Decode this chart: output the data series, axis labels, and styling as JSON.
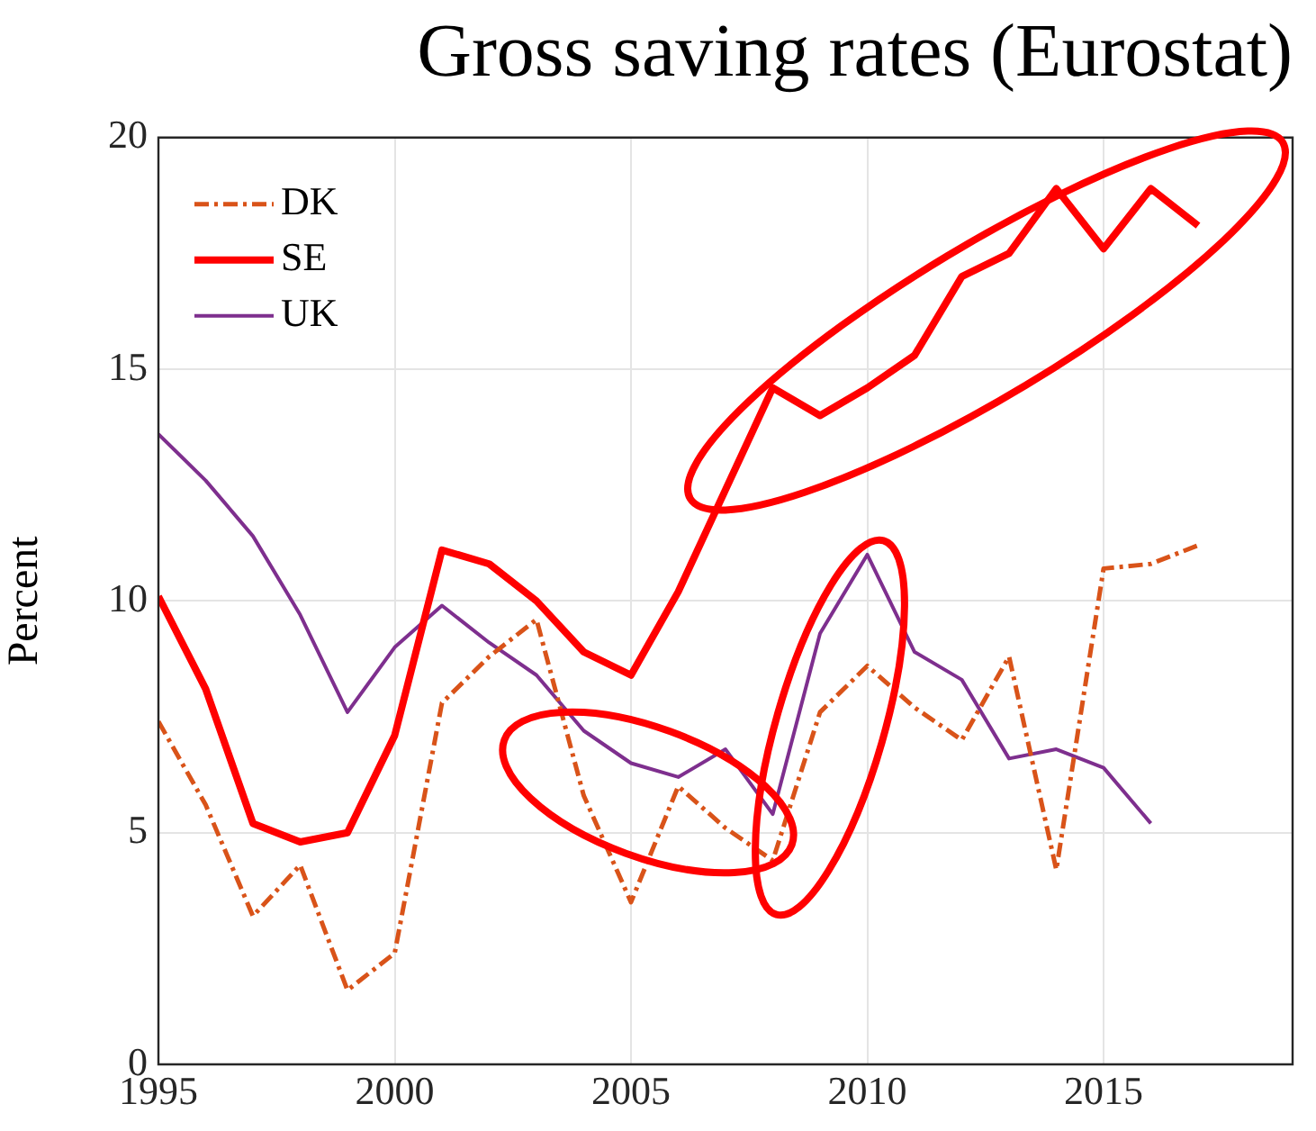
{
  "chart_data": {
    "type": "line",
    "title": "Gross saving rates (Eurostat)",
    "ylabel": "Percent",
    "x": [
      1995,
      1996,
      1997,
      1998,
      1999,
      2000,
      2001,
      2002,
      2003,
      2004,
      2005,
      2006,
      2007,
      2008,
      2009,
      2010,
      2011,
      2012,
      2013,
      2014,
      2015,
      2016,
      2017
    ],
    "series": [
      {
        "name": "DK",
        "color": "#d95319",
        "line_style": "dashed",
        "values": [
          7.4,
          5.6,
          3.2,
          4.3,
          1.6,
          2.4,
          7.8,
          8.8,
          9.6,
          5.8,
          3.5,
          6.0,
          5.1,
          4.4,
          7.6,
          8.6,
          7.7,
          7.0,
          8.8,
          4.2,
          10.7,
          10.8,
          11.2
        ]
      },
      {
        "name": "SE",
        "color": "#ff0000",
        "line_style": "solid",
        "values": [
          10.1,
          8.1,
          5.2,
          4.8,
          5.0,
          7.1,
          11.1,
          10.8,
          10.0,
          8.9,
          8.4,
          10.2,
          12.4,
          14.6,
          14.0,
          14.6,
          15.3,
          17.0,
          17.5,
          18.9,
          17.6,
          18.9,
          18.1
        ]
      },
      {
        "name": "UK",
        "color": "#7e2f8e",
        "line_style": "solid",
        "values": [
          13.6,
          12.6,
          11.4,
          9.7,
          7.6,
          9.0,
          9.9,
          9.1,
          8.4,
          7.2,
          6.5,
          6.2,
          6.8,
          5.4,
          9.3,
          11.0,
          8.9,
          8.3,
          6.6,
          6.8,
          6.4,
          5.2,
          null
        ]
      }
    ],
    "xlim": [
      1995,
      2019
    ],
    "xticks": [
      1995,
      2000,
      2005,
      2010,
      2015
    ],
    "ylim": [
      0,
      20
    ],
    "yticks": [
      0,
      5,
      10,
      15,
      20
    ],
    "grid": true,
    "legend": "top left",
    "marker": "none"
  }
}
